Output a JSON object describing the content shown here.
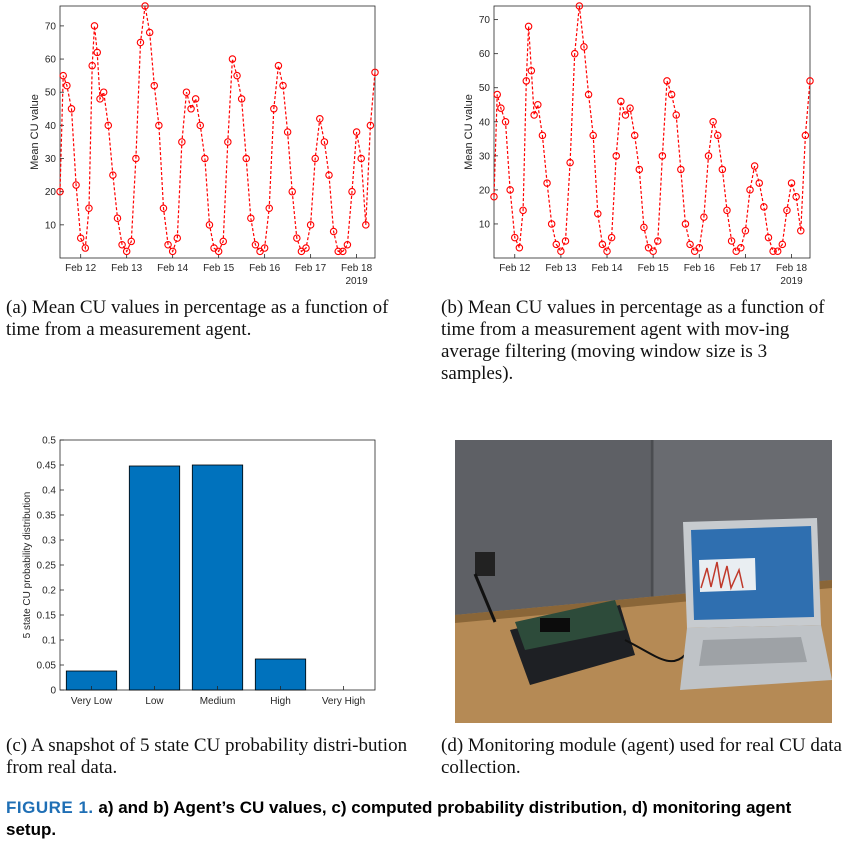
{
  "chart_data": [
    {
      "type": "line",
      "panel": "a",
      "ylabel": "Mean CU value",
      "xlabel": "",
      "x_ticks": [
        "Feb 12",
        "Feb 13",
        "Feb 14",
        "Feb 15",
        "Feb 16",
        "Feb 17",
        "Feb 18"
      ],
      "x_sublabel": "2019",
      "y_ticks": [
        10,
        20,
        30,
        40,
        50,
        60,
        70
      ],
      "ylim": [
        0,
        76
      ],
      "xlim": [
        11.55,
        18.4
      ],
      "grid": false,
      "series": [
        {
          "color": "#ff0000",
          "marker": "circle-open",
          "x": [
            11.55,
            11.62,
            11.7,
            11.8,
            11.9,
            12.0,
            12.1,
            12.18,
            12.25,
            12.3,
            12.36,
            12.42,
            12.5,
            12.6,
            12.7,
            12.8,
            12.9,
            13.0,
            13.1,
            13.2,
            13.3,
            13.4,
            13.5,
            13.6,
            13.7,
            13.8,
            13.9,
            14.0,
            14.1,
            14.2,
            14.3,
            14.4,
            14.5,
            14.6,
            14.7,
            14.8,
            14.9,
            15.0,
            15.1,
            15.2,
            15.3,
            15.4,
            15.5,
            15.6,
            15.7,
            15.8,
            15.9,
            16.0,
            16.1,
            16.2,
            16.3,
            16.4,
            16.5,
            16.6,
            16.7,
            16.8,
            16.9,
            17.0,
            17.1,
            17.2,
            17.3,
            17.4,
            17.5,
            17.6,
            17.7,
            17.8,
            17.9,
            18.0,
            18.1,
            18.2,
            18.3,
            18.4
          ],
          "y": [
            20,
            55,
            52,
            45,
            22,
            6,
            3,
            15,
            58,
            70,
            62,
            48,
            50,
            40,
            25,
            12,
            4,
            2,
            5,
            30,
            65,
            76,
            68,
            52,
            40,
            15,
            4,
            2,
            6,
            35,
            50,
            45,
            48,
            40,
            30,
            10,
            3,
            2,
            5,
            35,
            60,
            55,
            48,
            30,
            12,
            4,
            2,
            3,
            15,
            45,
            58,
            52,
            38,
            20,
            6,
            2,
            3,
            10,
            30,
            42,
            35,
            25,
            8,
            2,
            2,
            4,
            20,
            38,
            30,
            10,
            40,
            56
          ]
        }
      ]
    },
    {
      "type": "line",
      "panel": "b",
      "ylabel": "Mean CU value",
      "xlabel": "",
      "x_ticks": [
        "Feb 12",
        "Feb 13",
        "Feb 14",
        "Feb 15",
        "Feb 16",
        "Feb 17",
        "Feb 18"
      ],
      "x_sublabel": "2019",
      "y_ticks": [
        10,
        20,
        30,
        40,
        50,
        60,
        70
      ],
      "ylim": [
        0,
        74
      ],
      "xlim": [
        11.55,
        18.4
      ],
      "grid": false,
      "series": [
        {
          "color": "#ff0000",
          "marker": "circle-open",
          "x": [
            11.55,
            11.62,
            11.7,
            11.8,
            11.9,
            12.0,
            12.1,
            12.18,
            12.25,
            12.3,
            12.36,
            12.42,
            12.5,
            12.6,
            12.7,
            12.8,
            12.9,
            13.0,
            13.1,
            13.2,
            13.3,
            13.4,
            13.5,
            13.6,
            13.7,
            13.8,
            13.9,
            14.0,
            14.1,
            14.2,
            14.3,
            14.4,
            14.5,
            14.6,
            14.7,
            14.8,
            14.9,
            15.0,
            15.1,
            15.2,
            15.3,
            15.4,
            15.5,
            15.6,
            15.7,
            15.8,
            15.9,
            16.0,
            16.1,
            16.2,
            16.3,
            16.4,
            16.5,
            16.6,
            16.7,
            16.8,
            16.9,
            17.0,
            17.1,
            17.2,
            17.3,
            17.4,
            17.5,
            17.6,
            17.7,
            17.8,
            17.9,
            18.0,
            18.1,
            18.2,
            18.3,
            18.4
          ],
          "y": [
            18,
            48,
            44,
            40,
            20,
            6,
            3,
            14,
            52,
            68,
            55,
            42,
            45,
            36,
            22,
            10,
            4,
            2,
            5,
            28,
            60,
            74,
            62,
            48,
            36,
            13,
            4,
            2,
            6,
            30,
            46,
            42,
            44,
            36,
            26,
            9,
            3,
            2,
            5,
            30,
            52,
            48,
            42,
            26,
            10,
            4,
            2,
            3,
            12,
            30,
            40,
            36,
            26,
            14,
            5,
            2,
            3,
            8,
            20,
            27,
            22,
            15,
            6,
            2,
            2,
            4,
            14,
            22,
            18,
            8,
            36,
            52
          ]
        }
      ]
    },
    {
      "type": "bar",
      "panel": "c",
      "ylabel": "5 state CU probability distribution",
      "xlabel": "",
      "categories": [
        "Very Low",
        "Low",
        "Medium",
        "High",
        "Very High"
      ],
      "values": [
        0.038,
        0.448,
        0.45,
        0.062,
        0.0
      ],
      "y_ticks": [
        "0",
        "0.05",
        "0.1",
        "0.15",
        "0.2",
        "0.25",
        "0.3",
        "0.35",
        "0.4",
        "0.45",
        "0.5"
      ],
      "ylim": [
        0,
        0.5
      ],
      "grid": false,
      "color": "#0072bd"
    }
  ],
  "photo": {
    "description_alt": "monitoring-module-photo",
    "colors": {
      "desk": "#b58a55",
      "wall": "#6a6c70",
      "board": "#2a2d31",
      "laptop": "#bfc3c7",
      "screen": "#2f6fb0"
    }
  },
  "captions": {
    "a": "(a) Mean CU values in percentage as a function of time from a measurement agent.",
    "b": "(b) Mean CU values in percentage as a function of time from a measurement agent with mov-ing average filtering (moving window size is 3 samples).",
    "c": "(c) A snapshot of 5 state CU probability distri-bution from real data.",
    "d": "(d) Monitoring module (agent) used for real CU data collection."
  },
  "figure_caption": {
    "label": "FIGURE 1.",
    "text": "a) and b) Agent’s CU values, c) computed probability distribution, d) monitoring agent setup."
  },
  "colors": {
    "series": "#ff0000",
    "bar": "#0072bd",
    "label": "#1f6fb5"
  }
}
